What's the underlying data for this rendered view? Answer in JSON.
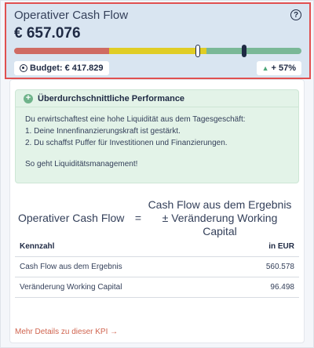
{
  "header": {
    "title": "Operativer Cash Flow",
    "amount": "€ 657.076",
    "budget_label": "Budget: € 417.829",
    "change_label": "+ 57%",
    "help_icon": "?"
  },
  "progress": {
    "budget_ratio": 0.64,
    "current_ratio": 0.8,
    "colors": {
      "low": "#cf6b63",
      "mid": "#e0cd25",
      "high": "#7ab897"
    }
  },
  "performance": {
    "heading": "Überdurchschnittliche Performance",
    "lines": [
      "Du erwirtschaftest eine hohe Liquidität aus dem Tagesgeschäft:",
      "1. Deine Innenfinanzierungskraft ist gestärkt.",
      "2. Du schaffst Puffer für Investitionen und Finanzierungen."
    ],
    "link": "So geht Liquiditätsmanagement!"
  },
  "formula": {
    "lhs": "Operativer Cash Flow",
    "eq": "=",
    "rhs_line1": "Cash Flow aus dem Ergebnis",
    "rhs_line2": "± Veränderung Working Capital"
  },
  "table": {
    "headers": [
      "Kennzahl",
      "in EUR"
    ],
    "rows": [
      {
        "name": "Cash Flow aus dem Ergebnis",
        "value": "560.578"
      },
      {
        "name": "Veränderung Working Capital",
        "value": "96.498"
      }
    ]
  },
  "footer": {
    "more_link": "Mehr Details zu dieser KPI →"
  }
}
